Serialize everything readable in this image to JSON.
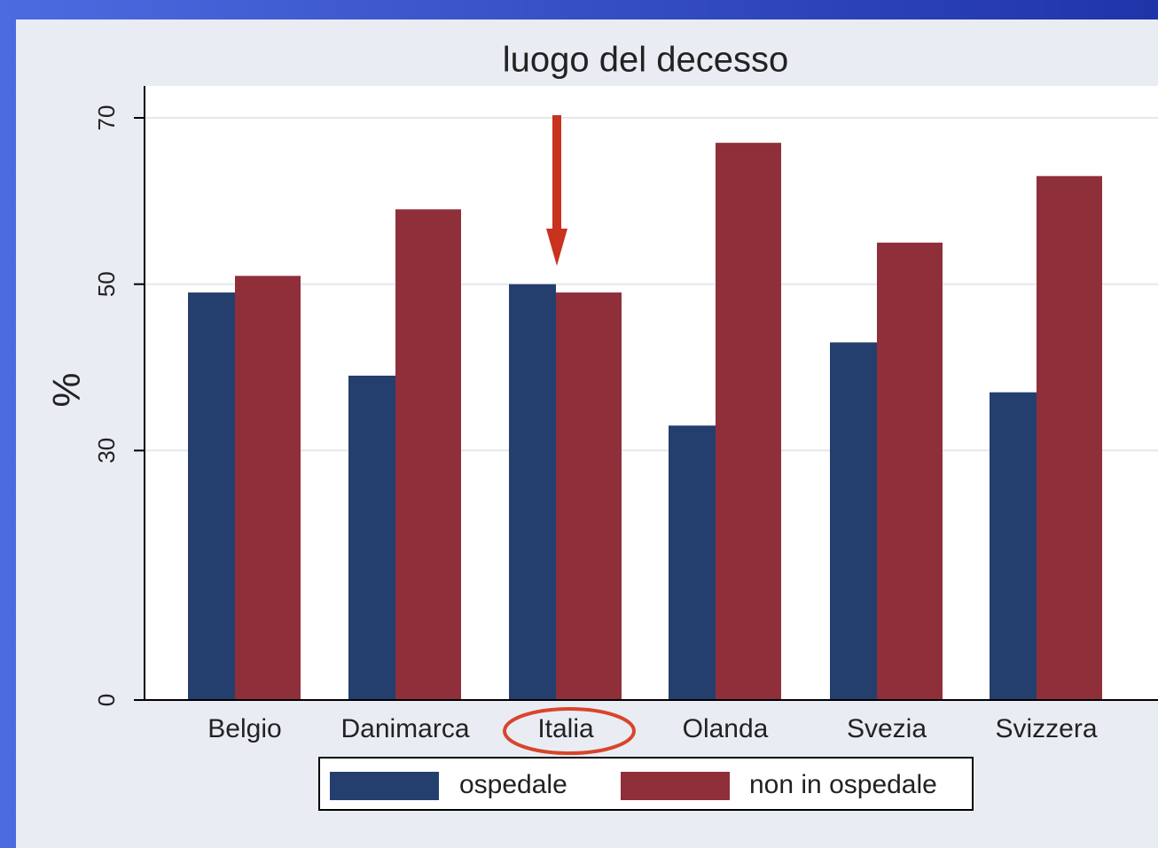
{
  "chart_data": {
    "type": "bar",
    "title": "luogo del decesso",
    "y_label": "%",
    "categories": [
      "Belgio",
      "Danimarca",
      "Italia",
      "Olanda",
      "Svezia",
      "Svizzera"
    ],
    "series": [
      {
        "name": "ospedale",
        "color": "#243f6e",
        "values": [
          49,
          39,
          50,
          33,
          43,
          37
        ]
      },
      {
        "name": "non in ospedale",
        "color": "#8f2f3a",
        "values": [
          51,
          59,
          49,
          67,
          55,
          63
        ]
      }
    ],
    "ylim": [
      0,
      70
    ],
    "yticks": [
      0,
      30,
      50,
      70
    ],
    "grid": true
  }
}
